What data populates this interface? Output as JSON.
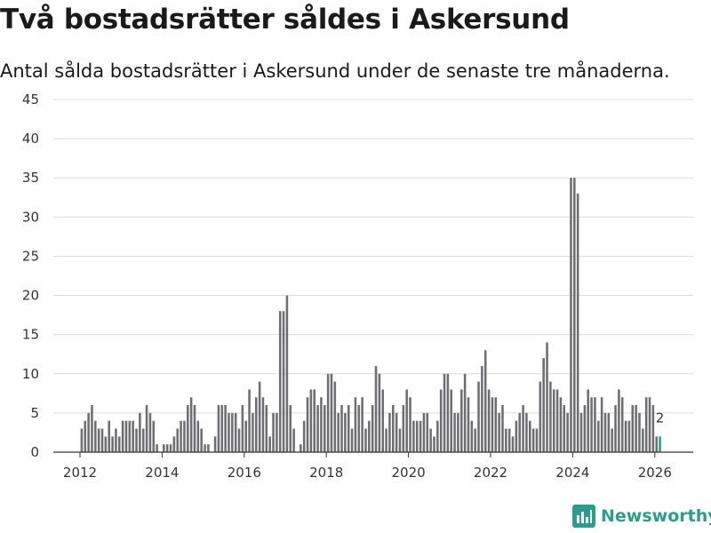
{
  "title": "Två bostadsrätter såldes i Askersund",
  "subtitle": "Antal sålda bostadsrätter i Askersund under de senaste tre månaderna.",
  "brand": {
    "name": "Newsworthy",
    "icon": "bar-chart-logo-icon",
    "color": "#2a9d8f"
  },
  "chart_data": {
    "type": "bar",
    "title": "Två bostadsrätter såldes i Askersund",
    "subtitle": "Antal sålda bostadsrätter i Askersund under de senaste tre månaderna.",
    "xlabel": "",
    "ylabel": "",
    "ylim": [
      0,
      45
    ],
    "yticks": [
      0,
      5,
      10,
      15,
      20,
      25,
      30,
      35,
      40,
      45
    ],
    "xticks": [
      "2012",
      "2014",
      "2016",
      "2018",
      "2020",
      "2022",
      "2024",
      "2026"
    ],
    "grid": true,
    "start": "2012-01",
    "frequency": "monthly",
    "bar_color": "#6e6d73",
    "highlight_color": "#2a9d8f",
    "highlight_label": "2",
    "values": [
      3,
      4,
      5,
      6,
      4,
      3,
      3,
      2,
      4,
      2,
      3,
      2,
      4,
      4,
      4,
      4,
      3,
      5,
      3,
      6,
      5,
      4,
      1,
      0,
      1,
      1,
      1,
      2,
      3,
      4,
      4,
      6,
      7,
      6,
      4,
      3,
      1,
      1,
      0,
      2,
      6,
      6,
      6,
      5,
      5,
      5,
      3,
      6,
      4,
      8,
      5,
      7,
      9,
      7,
      6,
      2,
      5,
      5,
      18,
      18,
      20,
      6,
      3,
      0,
      1,
      4,
      7,
      8,
      8,
      6,
      7,
      6,
      10,
      10,
      9,
      5,
      6,
      5,
      6,
      3,
      7,
      6,
      7,
      3,
      4,
      6,
      11,
      10,
      8,
      3,
      5,
      6,
      5,
      3,
      6,
      8,
      7,
      4,
      4,
      4,
      5,
      5,
      3,
      2,
      4,
      8,
      10,
      10,
      8,
      5,
      5,
      8,
      10,
      7,
      4,
      3,
      9,
      11,
      13,
      8,
      7,
      7,
      5,
      6,
      3,
      3,
      2,
      4,
      5,
      6,
      5,
      4,
      3,
      3,
      9,
      12,
      14,
      9,
      8,
      8,
      7,
      6,
      5,
      35,
      35,
      33,
      5,
      6,
      8,
      7,
      7,
      4,
      7,
      5,
      5,
      3,
      6,
      8,
      7,
      4,
      4,
      6,
      6,
      5,
      3,
      7,
      7,
      6,
      2,
      2
    ]
  }
}
